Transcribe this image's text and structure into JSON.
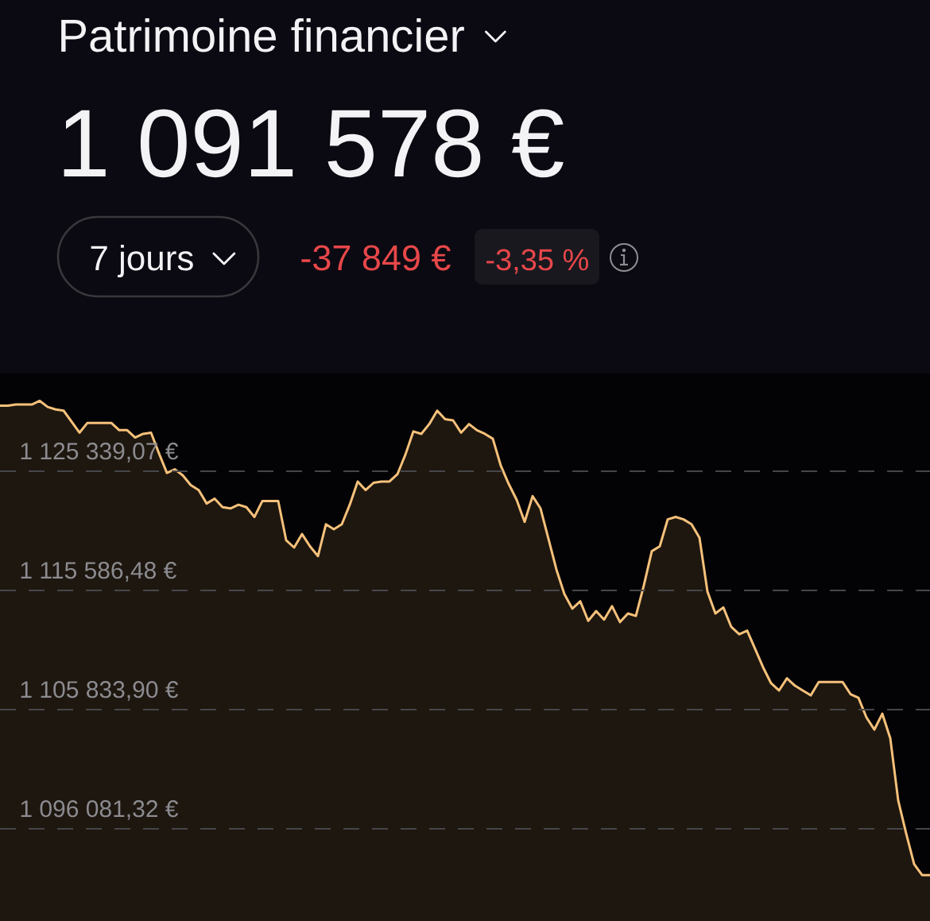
{
  "chart_data": {
    "type": "area",
    "title": "Patrimoine financier",
    "subtitle": "1 091 578 €",
    "annotations": [
      "7 jours",
      "-37 849 €",
      "-3,35 %"
    ],
    "categories": [
      null,
      null,
      null,
      null,
      null,
      null,
      null,
      null,
      null,
      null,
      null,
      null,
      null,
      null,
      null,
      null,
      null,
      null,
      null,
      null,
      null,
      null,
      null,
      null,
      null,
      null,
      null,
      null,
      null,
      null,
      null,
      null,
      null,
      null,
      null,
      null,
      null,
      null,
      null,
      null,
      null,
      null,
      null,
      null,
      null,
      null,
      null,
      null,
      null,
      null,
      null,
      null,
      null,
      null,
      null,
      null,
      null,
      null,
      null,
      null,
      null,
      null,
      null,
      null,
      null,
      null,
      null,
      null,
      null,
      null,
      null,
      null,
      null,
      null,
      null,
      null,
      null,
      null,
      null,
      null,
      null,
      null,
      null,
      null,
      null,
      null,
      null,
      null,
      null,
      null,
      null,
      null,
      null,
      null,
      null,
      null,
      null,
      null,
      null,
      null,
      null,
      null,
      null,
      null,
      null,
      null,
      null,
      null,
      null,
      null,
      null,
      null,
      null,
      null,
      null,
      null,
      null,
      null
    ],
    "series": [
      {
        "color": "#f6c17b",
        "values": [
          1130700,
          1130700,
          1130800,
          1130800,
          1130800,
          1131100,
          1130600,
          1130400,
          1130300,
          1129400,
          1128500,
          1129300,
          1129300,
          1129300,
          1129300,
          1128700,
          1128700,
          1128100,
          1128400,
          1128500,
          1126800,
          1125200,
          1125500,
          1125000,
          1124200,
          1123800,
          1122700,
          1123100,
          1122400,
          1122300,
          1122600,
          1122400,
          1121600,
          1122900,
          1122900,
          1122900,
          1119700,
          1119100,
          1120200,
          1119200,
          1118400,
          1121000,
          1120600,
          1121000,
          1122600,
          1124500,
          1123800,
          1124400,
          1124500,
          1124500,
          1125100,
          1126700,
          1128600,
          1128400,
          1129200,
          1130300,
          1129600,
          1129500,
          1128500,
          1129200,
          1128700,
          1128400,
          1128000,
          1125800,
          1124300,
          1123000,
          1121200,
          1123300,
          1122300,
          1119800,
          1117300,
          1115300,
          1114100,
          1114700,
          1113100,
          1113900,
          1113200,
          1114300,
          1113000,
          1113700,
          1113500,
          1116000,
          1118800,
          1119200,
          1121400,
          1121600,
          1121400,
          1121000,
          1119900,
          1115500,
          1113700,
          1114200,
          1112600,
          1112000,
          1112300,
          1110800,
          1109300,
          1108000,
          1107400,
          1108400,
          1107800,
          1107400,
          1107000,
          1108100,
          1108100,
          1108100,
          1108100,
          1107100,
          1106800,
          1105200,
          1104200,
          1105500,
          1103500,
          1098400,
          1095700,
          1093200,
          1092300,
          1092300
        ]
      }
    ],
    "ylim": [
      1088540,
      1133340
    ],
    "yticks": [
      {
        "value": 1096081.32,
        "label": "1 096 081,32 €"
      },
      {
        "value": 1105833.9,
        "label": "1 105 833,90 €"
      },
      {
        "value": 1115586.48,
        "label": "1 115 586,48 €"
      },
      {
        "value": 1125339.07,
        "label": "1 125 339,07 €"
      }
    ],
    "grid": "y",
    "tick_labels": "y"
  }
}
